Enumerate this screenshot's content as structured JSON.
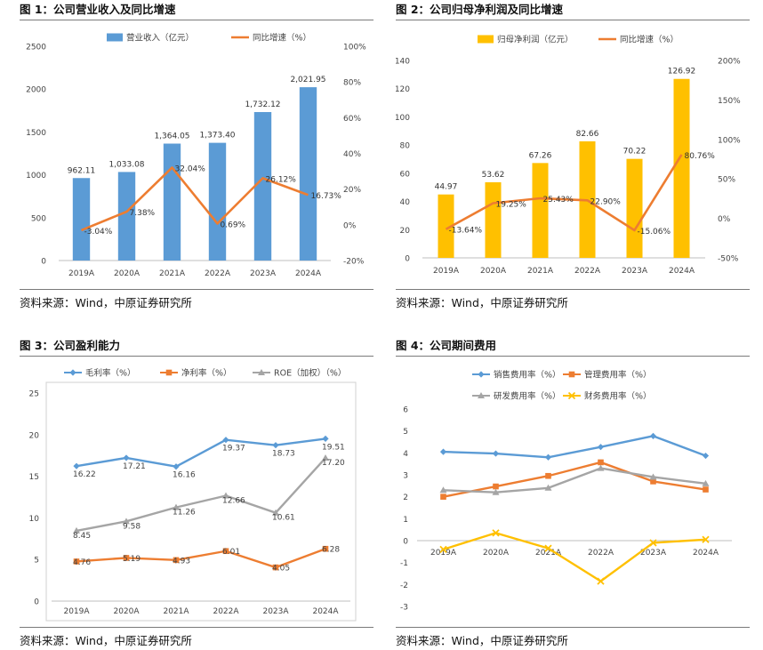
{
  "source_text": "资料来源：Wind，中原证券研究所",
  "chart_data": [
    {
      "id": "c1",
      "type": "bar+line",
      "title": "图 1：公司营业收入及同比增速",
      "categories": [
        "2019A",
        "2020A",
        "2021A",
        "2022A",
        "2023A",
        "2024A"
      ],
      "series": [
        {
          "name": "营业收入（亿元）",
          "type": "bar",
          "axis": "left",
          "values": [
            962.11,
            1033.08,
            1364.05,
            1373.4,
            1732.12,
            2021.95
          ],
          "labels": [
            "962.11",
            "1,033.08",
            "1,364.05",
            "1,373.40",
            "1,732.12",
            "2,021.95"
          ],
          "color": "#5B9BD5"
        },
        {
          "name": "同比增速（%）",
          "type": "line",
          "axis": "right",
          "values": [
            -3.04,
            7.38,
            32.04,
            0.69,
            26.12,
            16.73
          ],
          "labels": [
            "-3.04%",
            "7.38%",
            "32.04%",
            "0.69%",
            "26.12%",
            "16.73%"
          ],
          "color": "#ED7D31"
        }
      ],
      "left_ticks": [
        "0",
        "500",
        "1000",
        "1500",
        "2000",
        "2500"
      ],
      "ylim": [
        0,
        2500
      ],
      "right_ticks": [
        "-20%",
        "0%",
        "20%",
        "40%",
        "60%",
        "80%",
        "100%"
      ],
      "ylim_right": [
        -20,
        100
      ],
      "legend": "top"
    },
    {
      "id": "c2",
      "type": "bar+line",
      "title": "图 2：公司归母净利润及同比增速",
      "categories": [
        "2019A",
        "2020A",
        "2021A",
        "2022A",
        "2023A",
        "2024A"
      ],
      "series": [
        {
          "name": "归母净利润（亿元）",
          "type": "bar",
          "axis": "left",
          "values": [
            44.97,
            53.62,
            67.26,
            82.66,
            70.22,
            126.92
          ],
          "labels": [
            "44.97",
            "53.62",
            "67.26",
            "82.66",
            "70.22",
            "126.92"
          ],
          "color": "#FFC000"
        },
        {
          "name": "同比增速（%）",
          "type": "line",
          "axis": "right",
          "values": [
            -13.64,
            19.25,
            25.43,
            22.9,
            -15.06,
            80.76
          ],
          "labels": [
            "-13.64%",
            "19.25%",
            "25.43%",
            "22.90%",
            "-15.06%",
            "80.76%"
          ],
          "color": "#ED7D31"
        }
      ],
      "left_ticks": [
        "0",
        "20",
        "40",
        "60",
        "80",
        "100",
        "120",
        "140"
      ],
      "ylim": [
        0,
        140
      ],
      "right_ticks": [
        "-50%",
        "0%",
        "50%",
        "100%",
        "150%",
        "200%"
      ],
      "ylim_right": [
        -50,
        200
      ],
      "legend": "top"
    },
    {
      "id": "c3",
      "type": "line",
      "title": "图 3：公司盈利能力",
      "categories": [
        "2019A",
        "2020A",
        "2021A",
        "2022A",
        "2023A",
        "2024A"
      ],
      "series": [
        {
          "name": "毛利率（%）",
          "marker": "diamond",
          "values": [
            16.22,
            17.21,
            16.16,
            19.37,
            18.73,
            19.51
          ],
          "labels": [
            "16.22",
            "17.21",
            "16.16",
            "19.37",
            "18.73",
            "19.51"
          ],
          "color": "#5B9BD5"
        },
        {
          "name": "净利率（%）",
          "marker": "square",
          "values": [
            4.76,
            5.19,
            4.93,
            6.01,
            4.05,
            6.28
          ],
          "labels": [
            "4.76",
            "5.19",
            "4.93",
            "6.01",
            "4.05",
            "6.28"
          ],
          "color": "#ED7D31"
        },
        {
          "name": "ROE（加权）（%）",
          "marker": "triangle",
          "values": [
            8.45,
            9.58,
            11.26,
            12.66,
            10.61,
            17.2
          ],
          "labels": [
            "8.45",
            "9.58",
            "11.26",
            "12.66",
            "10.61",
            "17.20"
          ],
          "color": "#A5A5A5"
        }
      ],
      "left_ticks": [
        "0",
        "5",
        "10",
        "15",
        "20",
        "25"
      ],
      "ylim": [
        0,
        25
      ],
      "legend": "top"
    },
    {
      "id": "c4",
      "type": "line",
      "title": "图 4：公司期间费用",
      "categories": [
        "2019A",
        "2020A",
        "2021A",
        "2022A",
        "2023A",
        "2024A"
      ],
      "series": [
        {
          "name": "销售费用率（%）",
          "marker": "diamond",
          "values": [
            4.05,
            3.97,
            3.8,
            4.27,
            4.77,
            3.87
          ],
          "color": "#5B9BD5"
        },
        {
          "name": "管理费用率（%）",
          "marker": "square",
          "values": [
            2.0,
            2.47,
            2.95,
            3.57,
            2.7,
            2.33
          ],
          "color": "#ED7D31"
        },
        {
          "name": "研发费用率（%）",
          "marker": "triangle",
          "values": [
            2.3,
            2.2,
            2.4,
            3.3,
            2.9,
            2.6
          ],
          "color": "#A5A5A5"
        },
        {
          "name": "财务费用率（%）",
          "marker": "x",
          "values": [
            -0.4,
            0.35,
            -0.35,
            -1.85,
            -0.1,
            0.05
          ],
          "color": "#FFC000"
        }
      ],
      "left_ticks": [
        "-3",
        "-2",
        "-1",
        "0",
        "1",
        "2",
        "3",
        "4",
        "5",
        "6"
      ],
      "ylim": [
        -3,
        6
      ],
      "legend": "top"
    }
  ]
}
